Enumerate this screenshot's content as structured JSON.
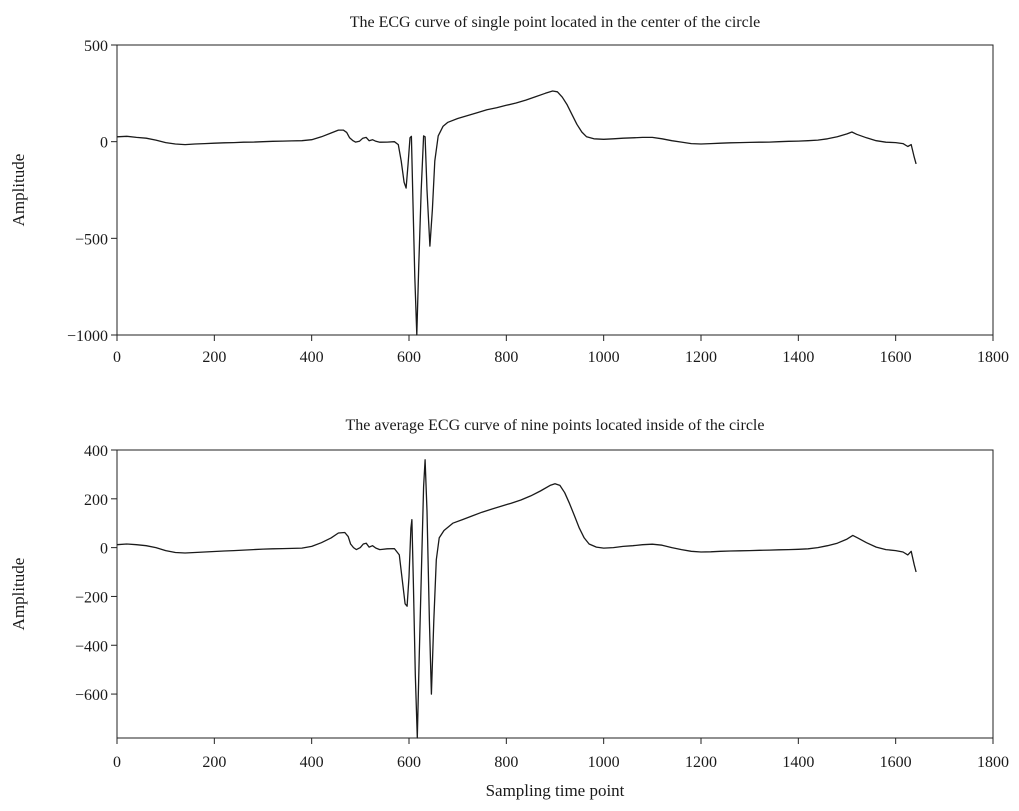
{
  "colors": {
    "line": "#1a1a1a",
    "axis": "#222222",
    "background": "#ffffff"
  },
  "chart_data": [
    {
      "type": "line",
      "title": "The ECG curve of single point located in the center of the circle",
      "xlabel": "",
      "ylabel": "Amplitude",
      "xlim": [
        0,
        1800
      ],
      "ylim": [
        -1000,
        500
      ],
      "xticks": [
        0,
        200,
        400,
        600,
        800,
        1000,
        1200,
        1400,
        1600,
        1800
      ],
      "yticks": [
        500,
        0,
        -500,
        -1000
      ],
      "ytick_labels": [
        "500",
        "0",
        "−500",
        "−1000"
      ],
      "grid": false,
      "series": [
        {
          "points": [
            [
              0,
              25
            ],
            [
              20,
              28
            ],
            [
              40,
              22
            ],
            [
              60,
              18
            ],
            [
              80,
              8
            ],
            [
              100,
              -5
            ],
            [
              120,
              -12
            ],
            [
              140,
              -15
            ],
            [
              160,
              -12
            ],
            [
              180,
              -10
            ],
            [
              200,
              -8
            ],
            [
              220,
              -6
            ],
            [
              240,
              -5
            ],
            [
              260,
              -3
            ],
            [
              280,
              -2
            ],
            [
              300,
              0
            ],
            [
              320,
              2
            ],
            [
              340,
              3
            ],
            [
              360,
              4
            ],
            [
              380,
              5
            ],
            [
              400,
              10
            ],
            [
              420,
              25
            ],
            [
              440,
              45
            ],
            [
              455,
              60
            ],
            [
              465,
              60
            ],
            [
              472,
              48
            ],
            [
              478,
              20
            ],
            [
              485,
              5
            ],
            [
              490,
              -2
            ],
            [
              498,
              2
            ],
            [
              505,
              18
            ],
            [
              512,
              22
            ],
            [
              518,
              5
            ],
            [
              525,
              10
            ],
            [
              532,
              2
            ],
            [
              540,
              -3
            ],
            [
              555,
              -2
            ],
            [
              570,
              0
            ],
            [
              578,
              -15
            ],
            [
              584,
              -100
            ],
            [
              590,
              -210
            ],
            [
              594,
              -240
            ],
            [
              598,
              -120
            ],
            [
              602,
              20
            ],
            [
              605,
              28
            ],
            [
              608,
              -300
            ],
            [
              612,
              -700
            ],
            [
              616,
              -1000
            ],
            [
              620,
              -650
            ],
            [
              625,
              -250
            ],
            [
              630,
              30
            ],
            [
              633,
              25
            ],
            [
              637,
              -250
            ],
            [
              643,
              -540
            ],
            [
              648,
              -350
            ],
            [
              653,
              -100
            ],
            [
              660,
              30
            ],
            [
              670,
              80
            ],
            [
              680,
              100
            ],
            [
              700,
              120
            ],
            [
              720,
              135
            ],
            [
              740,
              150
            ],
            [
              760,
              165
            ],
            [
              780,
              175
            ],
            [
              800,
              188
            ],
            [
              820,
              200
            ],
            [
              840,
              215
            ],
            [
              860,
              232
            ],
            [
              880,
              250
            ],
            [
              895,
              262
            ],
            [
              905,
              258
            ],
            [
              915,
              230
            ],
            [
              925,
              190
            ],
            [
              935,
              140
            ],
            [
              945,
              90
            ],
            [
              955,
              50
            ],
            [
              965,
              25
            ],
            [
              980,
              15
            ],
            [
              1000,
              12
            ],
            [
              1020,
              15
            ],
            [
              1040,
              18
            ],
            [
              1060,
              20
            ],
            [
              1080,
              22
            ],
            [
              1100,
              22
            ],
            [
              1120,
              15
            ],
            [
              1140,
              5
            ],
            [
              1160,
              -2
            ],
            [
              1180,
              -10
            ],
            [
              1200,
              -12
            ],
            [
              1220,
              -10
            ],
            [
              1240,
              -8
            ],
            [
              1260,
              -6
            ],
            [
              1280,
              -5
            ],
            [
              1300,
              -4
            ],
            [
              1320,
              -3
            ],
            [
              1340,
              -2
            ],
            [
              1360,
              0
            ],
            [
              1380,
              2
            ],
            [
              1400,
              3
            ],
            [
              1420,
              5
            ],
            [
              1440,
              8
            ],
            [
              1460,
              15
            ],
            [
              1480,
              25
            ],
            [
              1500,
              40
            ],
            [
              1510,
              50
            ],
            [
              1520,
              38
            ],
            [
              1540,
              20
            ],
            [
              1560,
              5
            ],
            [
              1580,
              -3
            ],
            [
              1600,
              -5
            ],
            [
              1615,
              -10
            ],
            [
              1625,
              -25
            ],
            [
              1632,
              -15
            ],
            [
              1638,
              -80
            ],
            [
              1642,
              -115
            ]
          ]
        }
      ]
    },
    {
      "type": "line",
      "title": "The average ECG curve of nine points located inside of the circle",
      "xlabel": "Sampling time point",
      "ylabel": "Amplitude",
      "xlim": [
        0,
        1800
      ],
      "ylim": [
        -780,
        400
      ],
      "xticks": [
        0,
        200,
        400,
        600,
        800,
        1000,
        1200,
        1400,
        1600,
        1800
      ],
      "yticks": [
        400,
        200,
        0,
        -200,
        -400,
        -600
      ],
      "ytick_labels": [
        "400",
        "200",
        "0",
        "−200",
        "−400",
        "−600"
      ],
      "grid": false,
      "series": [
        {
          "points": [
            [
              0,
              12
            ],
            [
              20,
              15
            ],
            [
              40,
              12
            ],
            [
              60,
              8
            ],
            [
              80,
              0
            ],
            [
              100,
              -12
            ],
            [
              120,
              -20
            ],
            [
              140,
              -22
            ],
            [
              160,
              -20
            ],
            [
              180,
              -18
            ],
            [
              200,
              -16
            ],
            [
              220,
              -14
            ],
            [
              240,
              -12
            ],
            [
              260,
              -10
            ],
            [
              280,
              -8
            ],
            [
              300,
              -6
            ],
            [
              320,
              -5
            ],
            [
              340,
              -4
            ],
            [
              360,
              -3
            ],
            [
              380,
              -2
            ],
            [
              400,
              5
            ],
            [
              420,
              20
            ],
            [
              440,
              40
            ],
            [
              455,
              60
            ],
            [
              468,
              62
            ],
            [
              475,
              45
            ],
            [
              480,
              15
            ],
            [
              486,
              0
            ],
            [
              492,
              -8
            ],
            [
              500,
              0
            ],
            [
              506,
              15
            ],
            [
              512,
              18
            ],
            [
              518,
              2
            ],
            [
              525,
              8
            ],
            [
              532,
              -2
            ],
            [
              540,
              -8
            ],
            [
              555,
              -5
            ],
            [
              570,
              -4
            ],
            [
              580,
              -30
            ],
            [
              586,
              -130
            ],
            [
              592,
              -230
            ],
            [
              596,
              -240
            ],
            [
              600,
              -120
            ],
            [
              604,
              80
            ],
            [
              606,
              115
            ],
            [
              609,
              -150
            ],
            [
              613,
              -520
            ],
            [
              617,
              -780
            ],
            [
              621,
              -450
            ],
            [
              626,
              -50
            ],
            [
              630,
              250
            ],
            [
              633,
              360
            ],
            [
              637,
              150
            ],
            [
              642,
              -300
            ],
            [
              646,
              -600
            ],
            [
              651,
              -300
            ],
            [
              656,
              -50
            ],
            [
              662,
              40
            ],
            [
              672,
              70
            ],
            [
              690,
              100
            ],
            [
              710,
              115
            ],
            [
              730,
              130
            ],
            [
              750,
              145
            ],
            [
              770,
              158
            ],
            [
              790,
              170
            ],
            [
              810,
              182
            ],
            [
              830,
              195
            ],
            [
              850,
              212
            ],
            [
              870,
              232
            ],
            [
              890,
              255
            ],
            [
              900,
              262
            ],
            [
              910,
              255
            ],
            [
              920,
              225
            ],
            [
              930,
              180
            ],
            [
              940,
              130
            ],
            [
              950,
              80
            ],
            [
              960,
              40
            ],
            [
              970,
              15
            ],
            [
              985,
              2
            ],
            [
              1000,
              -2
            ],
            [
              1020,
              0
            ],
            [
              1040,
              5
            ],
            [
              1060,
              8
            ],
            [
              1080,
              12
            ],
            [
              1100,
              14
            ],
            [
              1120,
              10
            ],
            [
              1140,
              0
            ],
            [
              1160,
              -8
            ],
            [
              1180,
              -15
            ],
            [
              1200,
              -18
            ],
            [
              1220,
              -17
            ],
            [
              1240,
              -15
            ],
            [
              1260,
              -14
            ],
            [
              1280,
              -13
            ],
            [
              1300,
              -12
            ],
            [
              1320,
              -11
            ],
            [
              1340,
              -10
            ],
            [
              1360,
              -9
            ],
            [
              1380,
              -8
            ],
            [
              1400,
              -7
            ],
            [
              1420,
              -5
            ],
            [
              1440,
              0
            ],
            [
              1460,
              8
            ],
            [
              1480,
              18
            ],
            [
              1500,
              35
            ],
            [
              1512,
              50
            ],
            [
              1522,
              40
            ],
            [
              1540,
              20
            ],
            [
              1560,
              2
            ],
            [
              1580,
              -8
            ],
            [
              1600,
              -12
            ],
            [
              1615,
              -18
            ],
            [
              1625,
              -30
            ],
            [
              1632,
              -15
            ],
            [
              1638,
              -70
            ],
            [
              1642,
              -100
            ]
          ]
        }
      ]
    }
  ]
}
